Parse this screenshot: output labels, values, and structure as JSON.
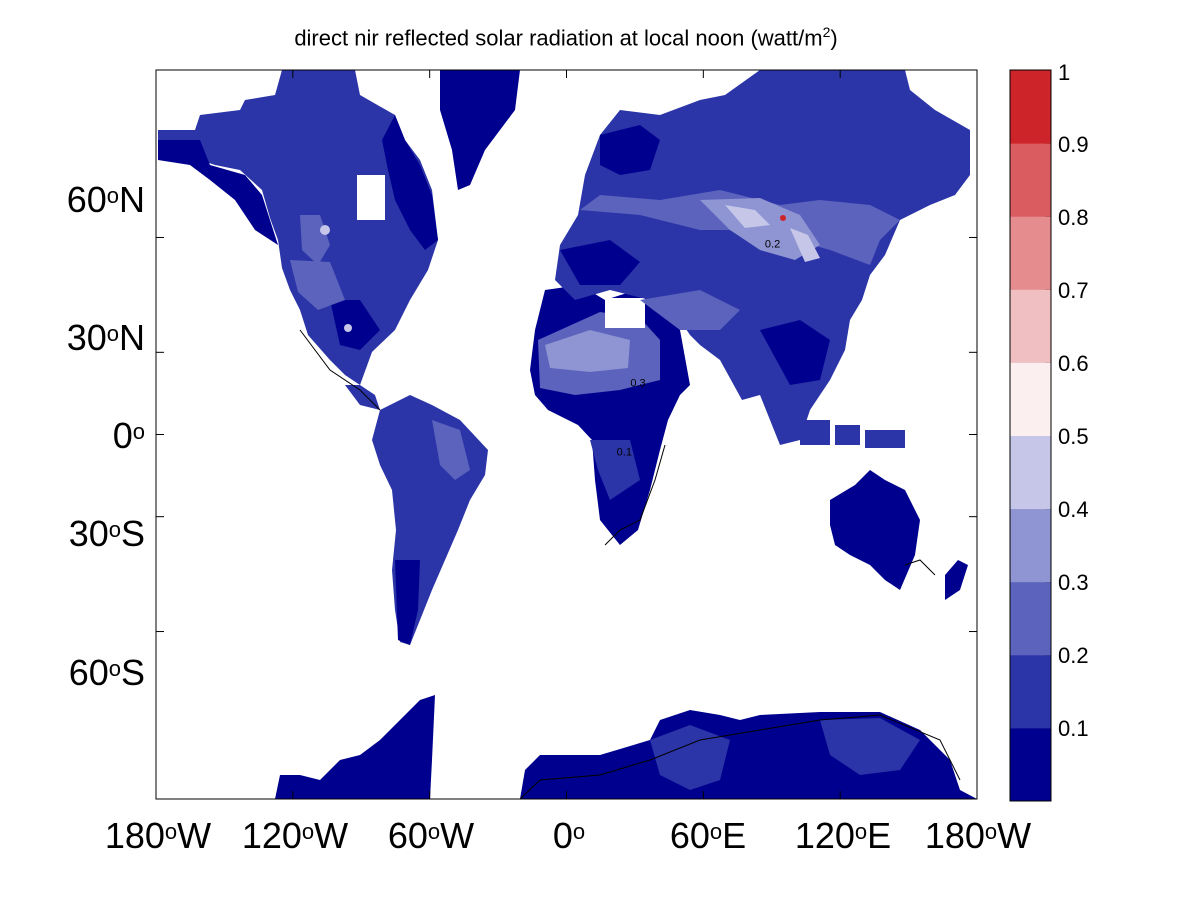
{
  "title_main": "direct nir reflected solar radiation at local noon (watt/m",
  "title_sup": "2",
  "title_end": ")",
  "lat_ticks": [
    {
      "num": "60",
      "hemi": "N",
      "lat": 60
    },
    {
      "num": "30",
      "hemi": "N",
      "lat": 30
    },
    {
      "num": "0",
      "hemi": "",
      "lat": 0
    },
    {
      "num": "30",
      "hemi": "S",
      "lat": -30
    },
    {
      "num": "60",
      "hemi": "S",
      "lat": -60
    }
  ],
  "lon_ticks": [
    {
      "num": "180",
      "hemi": "W",
      "lon": -180
    },
    {
      "num": "120",
      "hemi": "W",
      "lon": -120
    },
    {
      "num": "60",
      "hemi": "W",
      "lon": -60
    },
    {
      "num": "0",
      "hemi": "",
      "lon": 0
    },
    {
      "num": "60",
      "hemi": "E",
      "lon": 60
    },
    {
      "num": "120",
      "hemi": "E",
      "lon": 120
    },
    {
      "num": "180",
      "hemi": "W",
      "lon": 180
    }
  ],
  "colorbar": {
    "levels": [
      "0.1",
      "0.2",
      "0.3",
      "0.4",
      "0.5",
      "0.6",
      "0.7",
      "0.8",
      "0.9",
      "1"
    ],
    "colors": [
      "#00008f",
      "#2b35a8",
      "#5b63bd",
      "#8f94d2",
      "#c6c7e8",
      "#fbeff0",
      "#f0bfc1",
      "#e58c8f",
      "#da5c60",
      "#cc2428"
    ]
  },
  "chart_data": {
    "type": "heatmap",
    "title": "direct nir reflected solar radiation at local noon (watt/m2)",
    "projection": "mercator",
    "lon_range": [
      -180,
      180
    ],
    "lat_range": [
      -80,
      80
    ],
    "value_range": [
      0,
      1
    ],
    "contour_labels": [
      {
        "text": "0.2",
        "lon": 87,
        "lat": 58
      },
      {
        "text": "0.3",
        "lon": 28,
        "lat": 18
      },
      {
        "text": "0.1",
        "lon": 22,
        "lat": -8
      }
    ]
  }
}
